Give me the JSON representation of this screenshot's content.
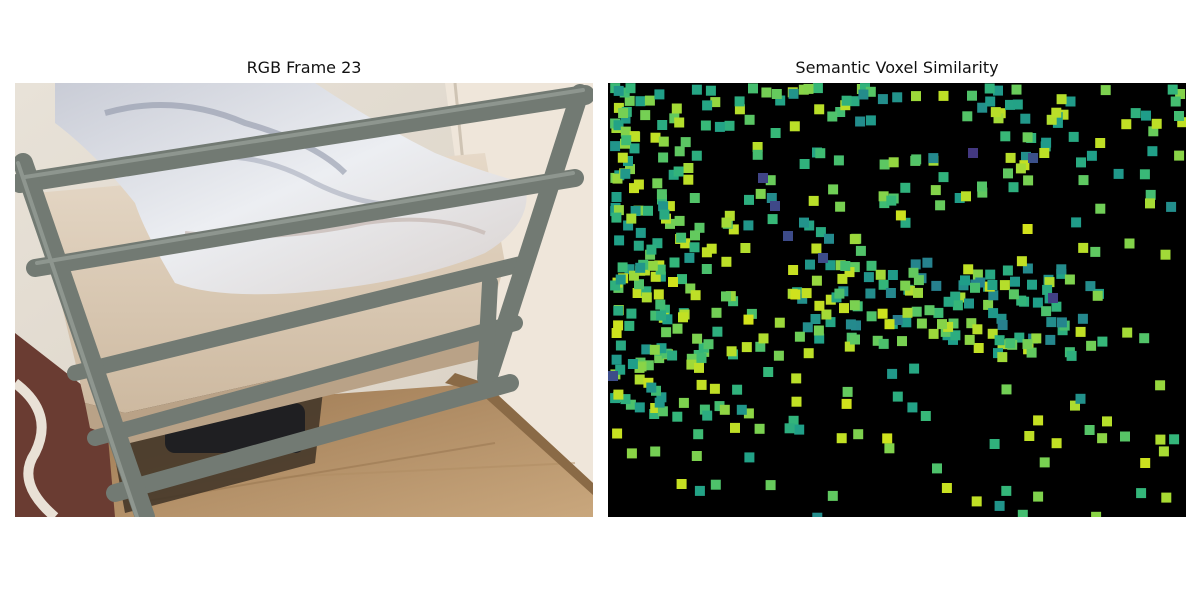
{
  "figure": {
    "left_title": "RGB Frame 23",
    "right_title": "Semantic Voxel Similarity"
  },
  "rgb_image": {
    "description_icon": "photo-bunk-bed-icon"
  },
  "voxel_plot": {
    "colormap": "viridis",
    "background": "#000000",
    "marker": "square"
  }
}
